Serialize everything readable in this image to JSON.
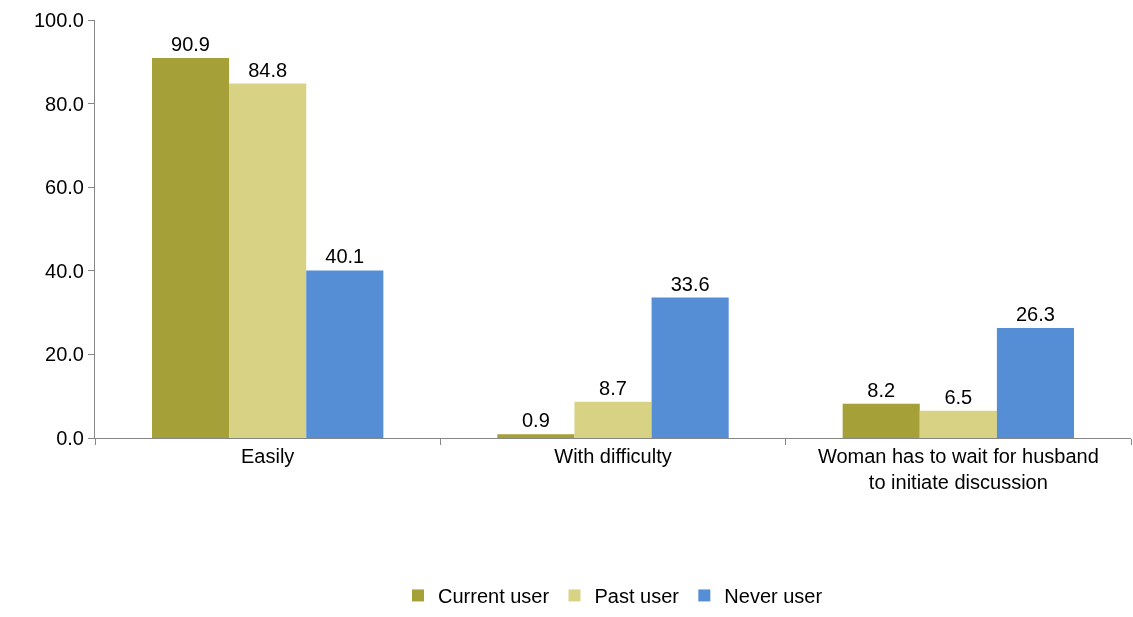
{
  "chart_data": {
    "type": "bar",
    "categories": [
      "Easily",
      "With difficulty",
      "Woman has to wait for husband to initiate discussion"
    ],
    "series": [
      {
        "name": "Current user",
        "color": "#a5a037",
        "values": [
          90.9,
          0.9,
          8.2
        ]
      },
      {
        "name": "Past user",
        "color": "#d8d384",
        "values": [
          84.8,
          8.7,
          6.5
        ]
      },
      {
        "name": "Never user",
        "color": "#558ed5",
        "values": [
          40.1,
          33.6,
          26.3
        ]
      }
    ],
    "ylim": [
      0,
      100
    ],
    "yticks": [
      {
        "value": 0,
        "label": "0.0"
      },
      {
        "value": 20,
        "label": "20.0"
      },
      {
        "value": 40,
        "label": "40.0"
      },
      {
        "value": 60,
        "label": "60.0"
      },
      {
        "value": 80,
        "label": "80.0"
      },
      {
        "value": 100,
        "label": "100.0"
      }
    ],
    "data_labels": true,
    "grid": false,
    "legend": "bottom"
  }
}
